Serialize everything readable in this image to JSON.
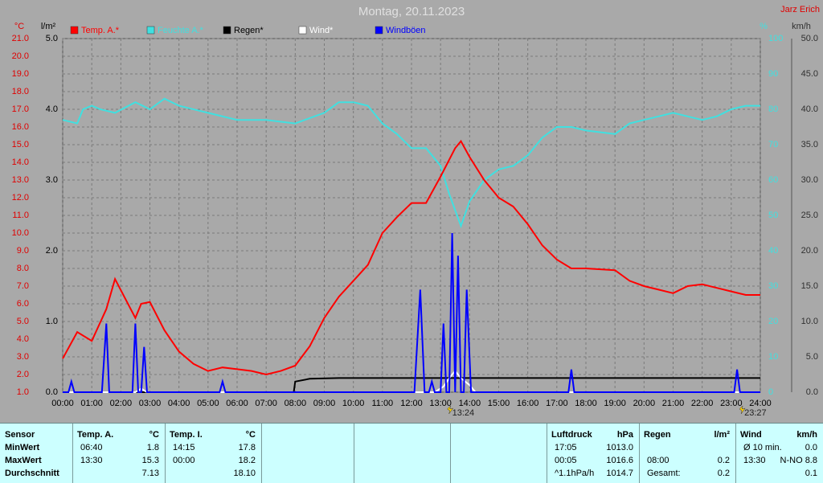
{
  "chart_data": {
    "type": "line",
    "title": "Montag, 20.11.2023",
    "author": "Jarz Erich",
    "xlim": [
      0,
      24
    ],
    "xticks": [
      {
        "value": 0,
        "label": "00:00"
      },
      {
        "value": 1,
        "label": "01:00"
      },
      {
        "value": 2,
        "label": "02:00"
      },
      {
        "value": 3,
        "label": "03:00"
      },
      {
        "value": 4,
        "label": "04:00"
      },
      {
        "value": 5,
        "label": "05:00"
      },
      {
        "value": 6,
        "label": "06:00"
      },
      {
        "value": 7,
        "label": "07:00"
      },
      {
        "value": 8,
        "label": "08:00"
      },
      {
        "value": 9,
        "label": "09:00"
      },
      {
        "value": 10,
        "label": "10:00"
      },
      {
        "value": 11,
        "label": "11:00"
      },
      {
        "value": 12,
        "label": "12:00"
      },
      {
        "value": 13,
        "label": "13:00"
      },
      {
        "value": 14,
        "label": "14:00"
      },
      {
        "value": 15,
        "label": "15:00"
      },
      {
        "value": 16,
        "label": "16:00"
      },
      {
        "value": 17,
        "label": "17:00"
      },
      {
        "value": 18,
        "label": "18:00"
      },
      {
        "value": 19,
        "label": "19:00"
      },
      {
        "value": 20,
        "label": "20:00"
      },
      {
        "value": 21,
        "label": "21:00"
      },
      {
        "value": 22,
        "label": "22:00"
      },
      {
        "value": 23,
        "label": "23:00"
      },
      {
        "value": 24,
        "label": "24:00"
      }
    ],
    "ylabel": "°C",
    "ycolor": "#e00000",
    "ylim": [
      1,
      21
    ],
    "yticks": [
      {
        "value": 1,
        "label": "1.0"
      },
      {
        "value": 2,
        "label": "2.0"
      },
      {
        "value": 3,
        "label": "3.0"
      },
      {
        "value": 4,
        "label": "4.0"
      },
      {
        "value": 5,
        "label": "5.0"
      },
      {
        "value": 6,
        "label": "6.0"
      },
      {
        "value": 7,
        "label": "7.0"
      },
      {
        "value": 8,
        "label": "8.0"
      },
      {
        "value": 9,
        "label": "9.0"
      },
      {
        "value": 10,
        "label": "10.0"
      },
      {
        "value": 11,
        "label": "11.0"
      },
      {
        "value": 12,
        "label": "12.0"
      },
      {
        "value": 13,
        "label": "13.0"
      },
      {
        "value": 14,
        "label": "14.0"
      },
      {
        "value": 15,
        "label": "15.0"
      },
      {
        "value": 16,
        "label": "16.0"
      },
      {
        "value": 17,
        "label": "17.0"
      },
      {
        "value": 18,
        "label": "18.0"
      },
      {
        "value": 19,
        "label": "19.0"
      },
      {
        "value": 20,
        "label": "20.0"
      },
      {
        "value": 21,
        "label": "21.0"
      }
    ],
    "y2label": "l/m²",
    "y2color": "#000000",
    "y2lim": [
      0,
      5
    ],
    "y2ticks": [
      {
        "value": 0,
        "label": "0.0"
      },
      {
        "value": 1,
        "label": "1.0"
      },
      {
        "value": 2,
        "label": "2.0"
      },
      {
        "value": 3,
        "label": "3.0"
      },
      {
        "value": 4,
        "label": "4.0"
      },
      {
        "value": 5,
        "label": "5.0"
      }
    ],
    "y3label": "%",
    "y3color": "#40e0e0",
    "y3lim": [
      0,
      100
    ],
    "y3ticks": [
      0,
      10,
      20,
      30,
      40,
      50,
      60,
      70,
      80,
      90,
      100
    ],
    "y4label": "km/h",
    "y4color": "#303030",
    "y4lim": [
      0,
      50
    ],
    "y4ticks": [
      {
        "value": 0,
        "label": "0.0"
      },
      {
        "value": 5,
        "label": "5.0"
      },
      {
        "value": 10,
        "label": "10.0"
      },
      {
        "value": 15,
        "label": "15.0"
      },
      {
        "value": 20,
        "label": "20.0"
      },
      {
        "value": 25,
        "label": "25.0"
      },
      {
        "value": 30,
        "label": "30.0"
      },
      {
        "value": 35,
        "label": "35.0"
      },
      {
        "value": 40,
        "label": "40.0"
      },
      {
        "value": 45,
        "label": "45.0"
      },
      {
        "value": 50,
        "label": "50.0"
      }
    ],
    "grid": true,
    "series": [
      {
        "name": "Temp. A.*",
        "color": "#ff0000",
        "axis": "y",
        "x": [
          0,
          0.5,
          1,
          1.5,
          1.8,
          2.5,
          2.7,
          3,
          3.5,
          4,
          4.5,
          5,
          5.5,
          6,
          6.5,
          7,
          7.5,
          8,
          8.5,
          9,
          9.5,
          10,
          10.5,
          11,
          11.5,
          12,
          12.5,
          13,
          13.5,
          13.7,
          14,
          14.5,
          15,
          15.5,
          16,
          16.5,
          17,
          17.5,
          18,
          19,
          19.5,
          20,
          20.5,
          21,
          21.5,
          22,
          22.5,
          23,
          23.5,
          24
        ],
        "values": [
          2.9,
          4.4,
          3.9,
          5.7,
          7.4,
          5.2,
          6.0,
          6.1,
          4.5,
          3.3,
          2.6,
          2.2,
          2.4,
          2.3,
          2.2,
          2.0,
          2.2,
          2.5,
          3.6,
          5.2,
          6.4,
          7.3,
          8.2,
          10.0,
          10.9,
          11.7,
          11.7,
          13.2,
          14.8,
          15.2,
          14.3,
          13.0,
          12.0,
          11.5,
          10.5,
          9.3,
          8.5,
          8.0,
          8.0,
          7.9,
          7.3,
          7.0,
          6.8,
          6.6,
          7.0,
          7.1,
          6.9,
          6.7,
          6.5,
          6.5
        ]
      },
      {
        "name": "Feuchte A.*",
        "color": "#40e0e0",
        "axis": "y3",
        "x": [
          0,
          0.5,
          0.7,
          1,
          1.3,
          1.8,
          2.5,
          3,
          3.5,
          4,
          5,
          6,
          7,
          8,
          9,
          9.5,
          10,
          10.5,
          11,
          11.5,
          12,
          12.5,
          13,
          13.3,
          13.7,
          14,
          14.5,
          15,
          15.5,
          16,
          16.5,
          17,
          17.5,
          18,
          19,
          19.5,
          20,
          21,
          21.5,
          22,
          22.5,
          23,
          23.5,
          24
        ],
        "values": [
          77,
          76,
          80,
          81,
          80,
          79,
          82,
          80,
          83,
          81,
          79,
          77,
          77,
          76,
          79,
          82,
          82,
          81,
          76,
          73,
          69,
          69,
          64,
          56,
          47,
          54,
          60,
          63,
          64,
          67,
          72,
          75,
          75,
          74,
          73,
          76,
          77,
          79,
          78,
          77,
          78,
          80,
          81,
          81
        ]
      },
      {
        "name": "Regen*",
        "color": "#000000",
        "axis": "y2",
        "x": [
          0,
          7.95,
          8.0,
          8.5,
          9.5,
          24
        ],
        "values": [
          0,
          0,
          0.15,
          0.19,
          0.2,
          0.2
        ]
      },
      {
        "name": "Wind*",
        "color": "#ffffff",
        "axis": "y4",
        "x": [
          0,
          2.5,
          2.7,
          2.9,
          12.8,
          13.1,
          13.3,
          13.5,
          13.7,
          14,
          14.2,
          24
        ],
        "values": [
          0,
          0,
          0.5,
          0,
          0,
          0.8,
          2,
          3,
          2,
          1,
          0,
          0
        ]
      },
      {
        "name": "Windböen",
        "color": "#0000ff",
        "axis": "y4",
        "x": [
          0,
          0.2,
          0.3,
          0.4,
          1.35,
          1.5,
          1.6,
          2.4,
          2.5,
          2.6,
          2.7,
          2.8,
          2.9,
          5.4,
          5.5,
          5.6,
          12.1,
          12.3,
          12.45,
          12.6,
          12.7,
          12.8,
          13.0,
          13.1,
          13.2,
          13.3,
          13.4,
          13.5,
          13.6,
          13.7,
          13.8,
          13.9,
          14.05,
          17.4,
          17.5,
          17.6,
          23.1,
          23.2,
          23.3,
          24
        ],
        "values": [
          0,
          0,
          1.5,
          0,
          0,
          9.7,
          0,
          0,
          9.7,
          0,
          0,
          6.4,
          0,
          0,
          1.5,
          0,
          0,
          14.5,
          0,
          0,
          1.5,
          0,
          0,
          9.7,
          0,
          0,
          22.5,
          0,
          19.3,
          0,
          0,
          14.5,
          0,
          0,
          3.2,
          0,
          0,
          3.2,
          0,
          0
        ]
      }
    ],
    "annotations": [
      {
        "x": 13.4,
        "label": "13:24"
      },
      {
        "x": 23.45,
        "label": "23:27"
      }
    ]
  },
  "table": {
    "sensor": [
      "Sensor",
      "MinWert",
      "MaxWert",
      "Durchschnitt"
    ],
    "sections": [
      {
        "title": "Temp. A.",
        "unit": "°C",
        "rows": [
          {
            "time": "06:40",
            "value": "1.8"
          },
          {
            "time": "13:30",
            "value": "15.3"
          },
          {
            "value": "7.13"
          }
        ]
      },
      {
        "title": "Temp. I.",
        "unit": "°C",
        "rows": [
          {
            "time": "14:15",
            "value": "17.8"
          },
          {
            "time": "00:00",
            "value": "18.2"
          },
          {
            "value": "18.10"
          }
        ]
      },
      {
        "title": "Luftdruck",
        "unit": "hPa",
        "rows": [
          {
            "time": "17:05",
            "value": "1013.0"
          },
          {
            "time": "00:05",
            "value": "1016.6"
          },
          {
            "time": "^1.1hPa/h",
            "value": "1014.7"
          }
        ]
      },
      {
        "title": "Regen",
        "unit": "l/m²",
        "rows": [
          {
            "time": "08:00",
            "value": "0.2"
          },
          {
            "time": "Gesamt:",
            "value": "0.2"
          }
        ],
        "start_row": 1
      },
      {
        "title": "Wind",
        "unit": "km/h",
        "rows": [
          {
            "time": "Ø 10 min.",
            "value": "0.0"
          },
          {
            "time": "13:30",
            "value": "N-NO 8.8"
          },
          {
            "value": "0.1"
          }
        ]
      }
    ]
  }
}
